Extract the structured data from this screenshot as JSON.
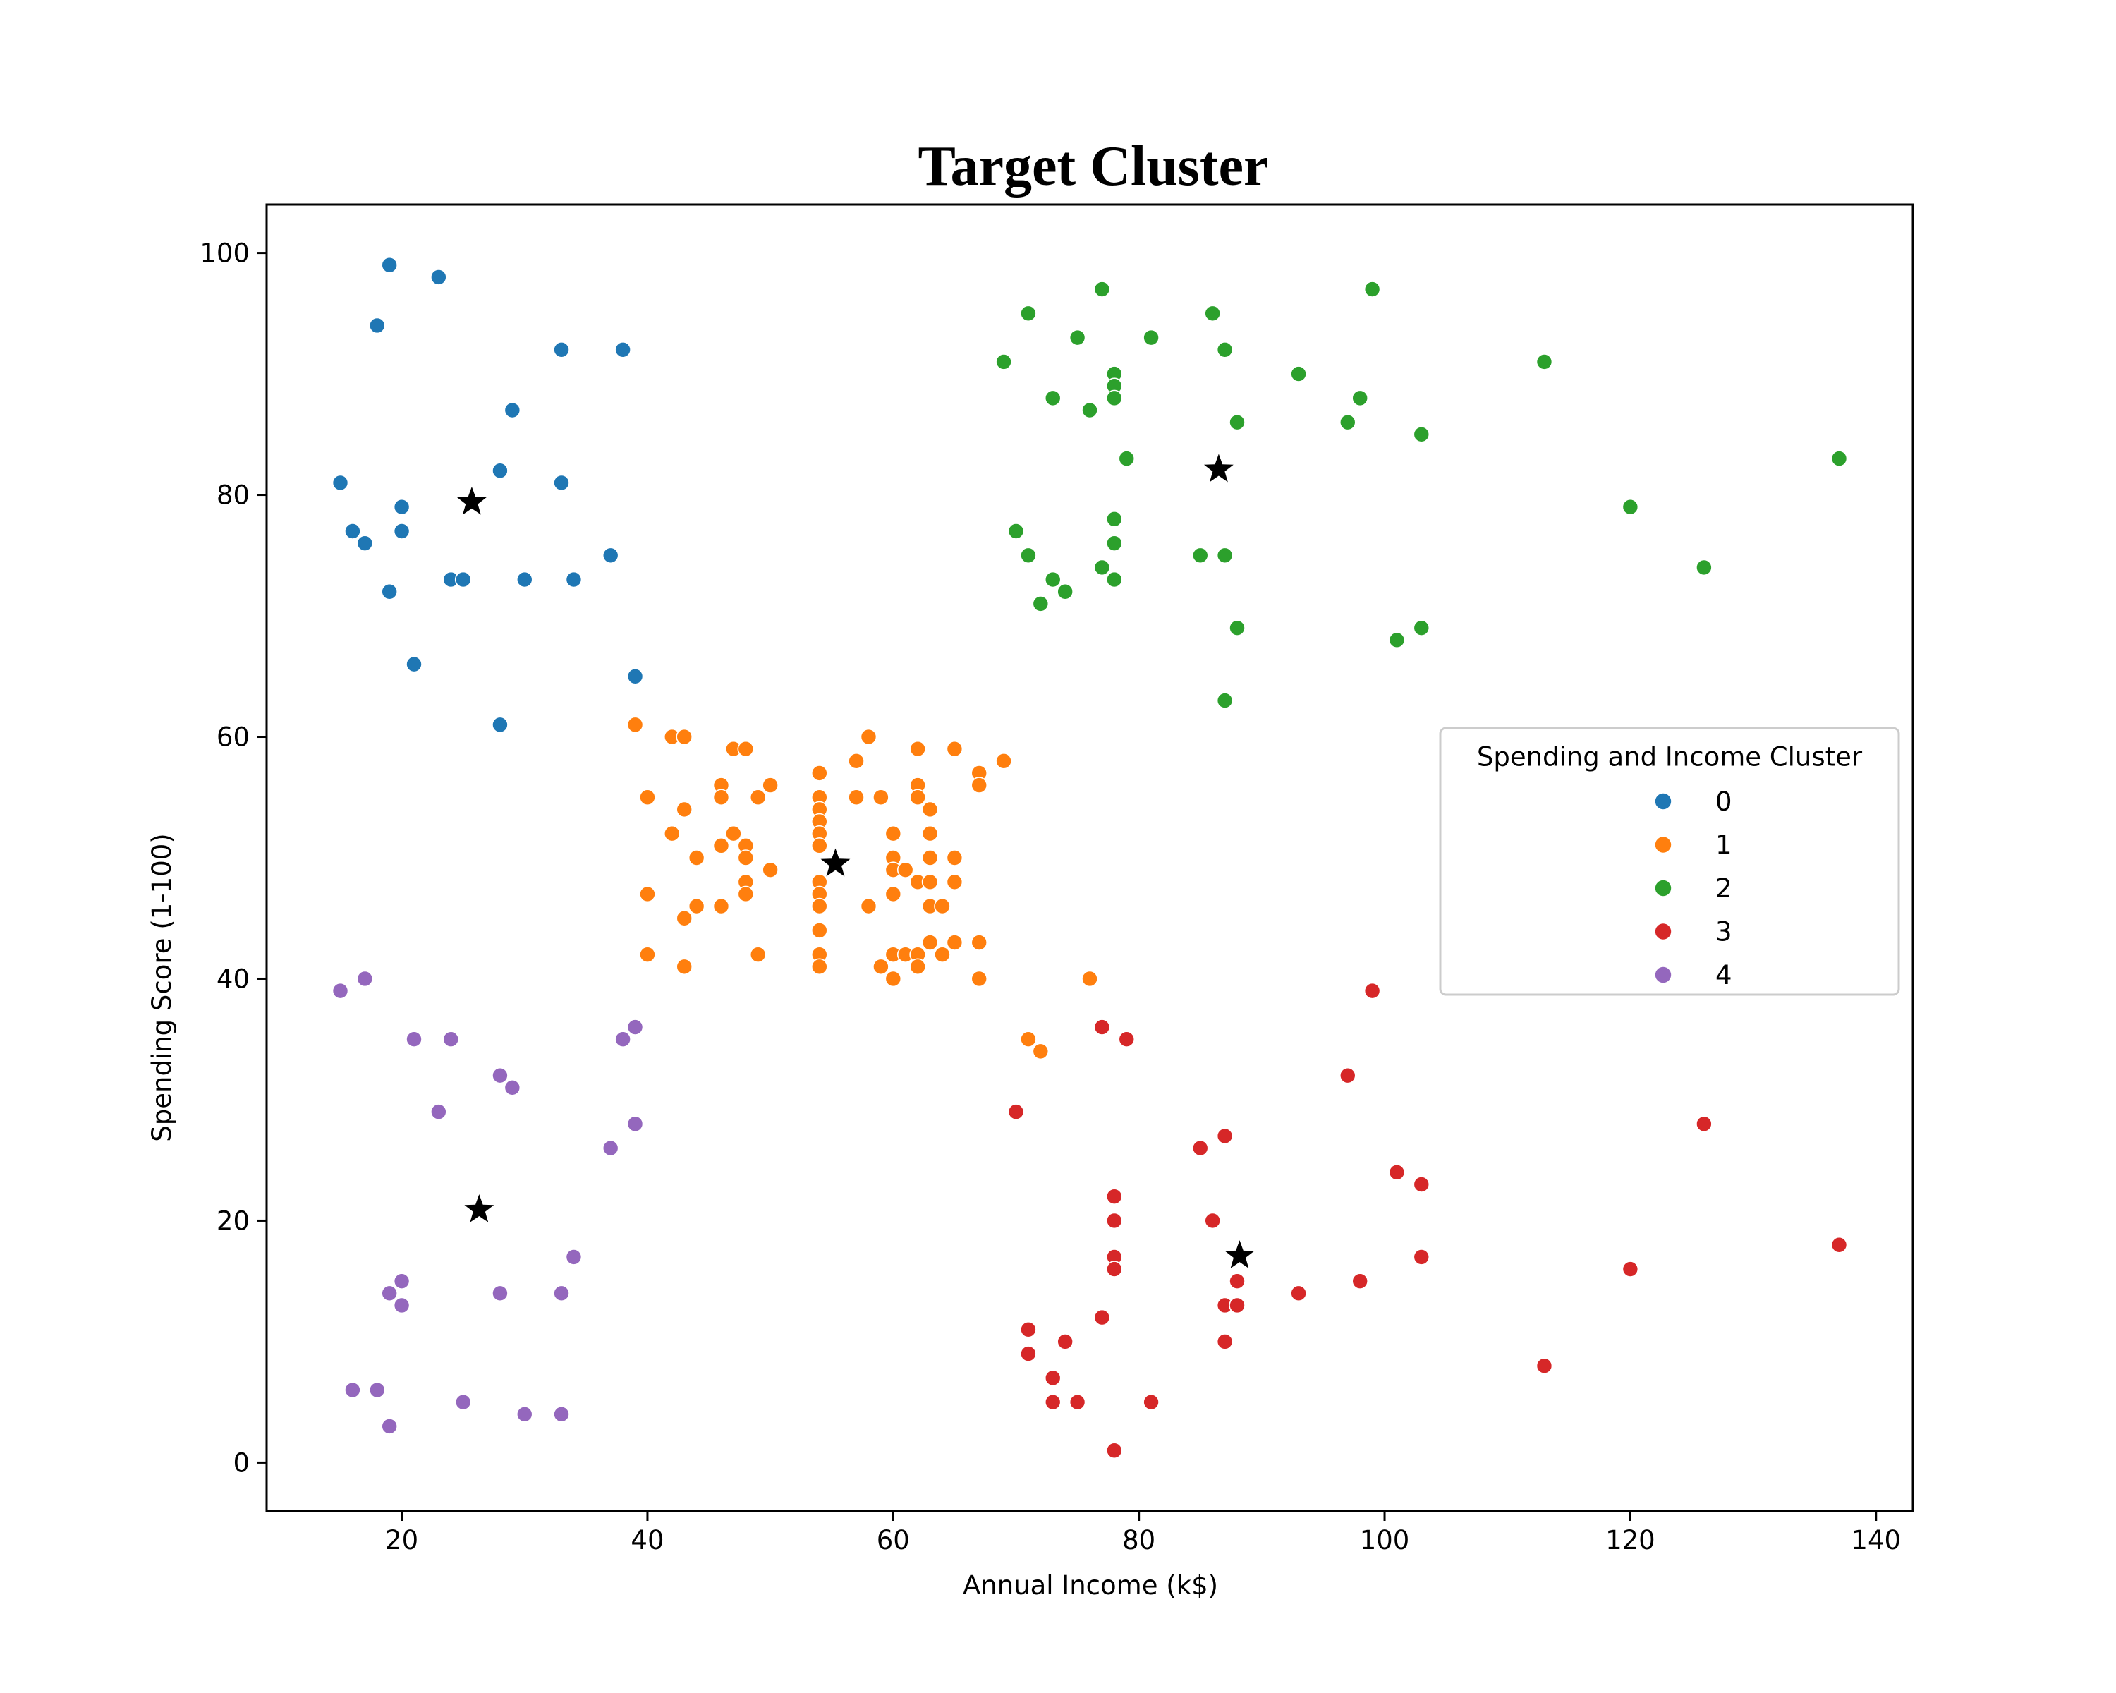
{
  "chart_data": {
    "type": "scatter",
    "title": "Target Cluster",
    "xlabel": "Annual Income (k$)",
    "ylabel": "Spending Score (1-100)",
    "xlim": [
      9,
      143
    ],
    "ylim": [
      -4,
      104
    ],
    "xticks": [
      20,
      40,
      60,
      80,
      100,
      120,
      140
    ],
    "yticks": [
      0,
      20,
      40,
      60,
      80,
      100
    ],
    "grid": false,
    "legend": {
      "title": "Spending and Income Cluster",
      "placement": "center-right"
    },
    "centroid_marker": "star",
    "centroid_color": "#000000",
    "series": [
      {
        "name": "0",
        "color": "#1f77b4",
        "points": [
          [
            15,
            81
          ],
          [
            16,
            77
          ],
          [
            17,
            76
          ],
          [
            18,
            94
          ],
          [
            19,
            72
          ],
          [
            19,
            99
          ],
          [
            20,
            77
          ],
          [
            20,
            79
          ],
          [
            21,
            66
          ],
          [
            23,
            98
          ],
          [
            24,
            73
          ],
          [
            25,
            73
          ],
          [
            28,
            82
          ],
          [
            28,
            61
          ],
          [
            29,
            87
          ],
          [
            30,
            73
          ],
          [
            33,
            92
          ],
          [
            33,
            81
          ],
          [
            34,
            73
          ],
          [
            37,
            75
          ],
          [
            38,
            92
          ],
          [
            39,
            65
          ]
        ],
        "centroid": [
          25.7,
          79.4
        ]
      },
      {
        "name": "1",
        "color": "#ff7f0e",
        "points": [
          [
            39,
            61
          ],
          [
            40,
            55
          ],
          [
            40,
            47
          ],
          [
            40,
            42
          ],
          [
            42,
            60
          ],
          [
            42,
            52
          ],
          [
            43,
            60
          ],
          [
            43,
            54
          ],
          [
            43,
            45
          ],
          [
            43,
            41
          ],
          [
            44,
            50
          ],
          [
            44,
            46
          ],
          [
            46,
            56
          ],
          [
            46,
            55
          ],
          [
            46,
            51
          ],
          [
            46,
            46
          ],
          [
            47,
            59
          ],
          [
            47,
            52
          ],
          [
            48,
            59
          ],
          [
            48,
            51
          ],
          [
            48,
            50
          ],
          [
            48,
            48
          ],
          [
            48,
            47
          ],
          [
            49,
            55
          ],
          [
            49,
            42
          ],
          [
            50,
            56
          ],
          [
            50,
            49
          ],
          [
            54,
            57
          ],
          [
            54,
            55
          ],
          [
            54,
            54
          ],
          [
            54,
            53
          ],
          [
            54,
            52
          ],
          [
            54,
            51
          ],
          [
            54,
            48
          ],
          [
            54,
            47
          ],
          [
            54,
            46
          ],
          [
            54,
            44
          ],
          [
            54,
            42
          ],
          [
            54,
            41
          ],
          [
            57,
            58
          ],
          [
            57,
            55
          ],
          [
            58,
            60
          ],
          [
            58,
            46
          ],
          [
            59,
            55
          ],
          [
            59,
            41
          ],
          [
            60,
            52
          ],
          [
            60,
            50
          ],
          [
            60,
            49
          ],
          [
            60,
            47
          ],
          [
            60,
            42
          ],
          [
            60,
            40
          ],
          [
            61,
            49
          ],
          [
            61,
            42
          ],
          [
            62,
            59
          ],
          [
            62,
            56
          ],
          [
            62,
            55
          ],
          [
            62,
            48
          ],
          [
            62,
            42
          ],
          [
            62,
            41
          ],
          [
            63,
            54
          ],
          [
            63,
            52
          ],
          [
            63,
            50
          ],
          [
            63,
            48
          ],
          [
            63,
            46
          ],
          [
            63,
            43
          ],
          [
            64,
            46
          ],
          [
            64,
            42
          ],
          [
            65,
            59
          ],
          [
            65,
            50
          ],
          [
            65,
            48
          ],
          [
            65,
            43
          ],
          [
            67,
            57
          ],
          [
            67,
            56
          ],
          [
            67,
            43
          ],
          [
            67,
            40
          ],
          [
            69,
            58
          ],
          [
            71,
            35
          ],
          [
            72,
            34
          ],
          [
            76,
            40
          ]
        ],
        "centroid": [
          55.3,
          49.5
        ]
      },
      {
        "name": "2",
        "color": "#2ca02c",
        "points": [
          [
            69,
            91
          ],
          [
            70,
            77
          ],
          [
            71,
            95
          ],
          [
            71,
            75
          ],
          [
            72,
            71
          ],
          [
            73,
            88
          ],
          [
            73,
            73
          ],
          [
            74,
            72
          ],
          [
            75,
            93
          ],
          [
            76,
            87
          ],
          [
            77,
            97
          ],
          [
            77,
            74
          ],
          [
            78,
            90
          ],
          [
            78,
            89
          ],
          [
            78,
            88
          ],
          [
            78,
            78
          ],
          [
            78,
            76
          ],
          [
            78,
            73
          ],
          [
            79,
            83
          ],
          [
            81,
            93
          ],
          [
            85,
            75
          ],
          [
            86,
            95
          ],
          [
            87,
            92
          ],
          [
            87,
            75
          ],
          [
            87,
            63
          ],
          [
            88,
            86
          ],
          [
            88,
            69
          ],
          [
            93,
            90
          ],
          [
            97,
            86
          ],
          [
            98,
            88
          ],
          [
            99,
            97
          ],
          [
            101,
            68
          ],
          [
            103,
            85
          ],
          [
            103,
            69
          ],
          [
            113,
            91
          ],
          [
            120,
            79
          ],
          [
            126,
            74
          ],
          [
            137,
            83
          ]
        ],
        "centroid": [
          86.5,
          82.1
        ]
      },
      {
        "name": "3",
        "color": "#d62728",
        "points": [
          [
            70,
            29
          ],
          [
            71,
            11
          ],
          [
            71,
            9
          ],
          [
            73,
            7
          ],
          [
            73,
            5
          ],
          [
            74,
            10
          ],
          [
            75,
            5
          ],
          [
            77,
            36
          ],
          [
            77,
            12
          ],
          [
            78,
            22
          ],
          [
            78,
            20
          ],
          [
            78,
            17
          ],
          [
            78,
            16
          ],
          [
            78,
            1
          ],
          [
            79,
            35
          ],
          [
            81,
            5
          ],
          [
            85,
            26
          ],
          [
            86,
            20
          ],
          [
            87,
            27
          ],
          [
            87,
            13
          ],
          [
            87,
            10
          ],
          [
            88,
            15
          ],
          [
            88,
            13
          ],
          [
            93,
            14
          ],
          [
            97,
            32
          ],
          [
            98,
            15
          ],
          [
            99,
            39
          ],
          [
            101,
            24
          ],
          [
            103,
            23
          ],
          [
            103,
            17
          ],
          [
            113,
            8
          ],
          [
            120,
            16
          ],
          [
            126,
            28
          ],
          [
            137,
            18
          ]
        ],
        "centroid": [
          88.2,
          17.1
        ]
      },
      {
        "name": "4",
        "color": "#9467bd",
        "points": [
          [
            15,
            39
          ],
          [
            16,
            6
          ],
          [
            17,
            40
          ],
          [
            18,
            6
          ],
          [
            19,
            14
          ],
          [
            19,
            3
          ],
          [
            20,
            15
          ],
          [
            20,
            13
          ],
          [
            21,
            35
          ],
          [
            23,
            29
          ],
          [
            24,
            35
          ],
          [
            25,
            5
          ],
          [
            28,
            32
          ],
          [
            28,
            14
          ],
          [
            29,
            31
          ],
          [
            30,
            4
          ],
          [
            33,
            14
          ],
          [
            33,
            4
          ],
          [
            34,
            17
          ],
          [
            37,
            26
          ],
          [
            38,
            35
          ],
          [
            39,
            36
          ],
          [
            39,
            28
          ]
        ],
        "centroid": [
          26.3,
          20.9
        ]
      }
    ]
  }
}
